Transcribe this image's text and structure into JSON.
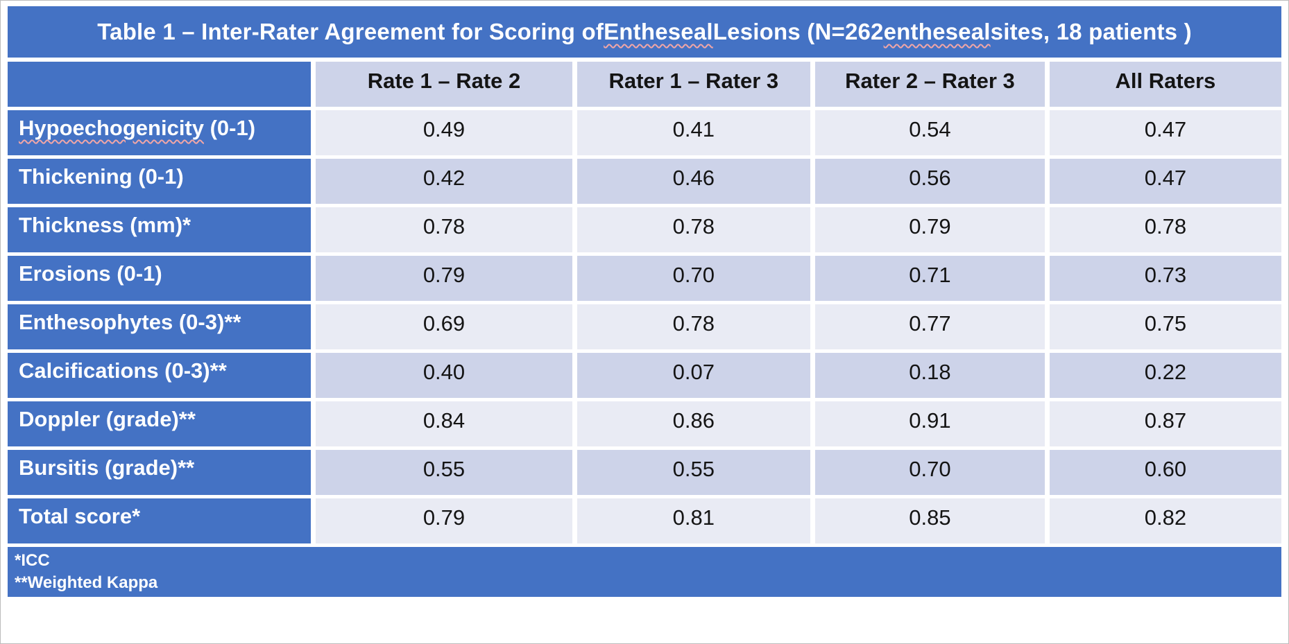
{
  "colors": {
    "accent_blue": "#4472C4",
    "band_light": "#E9EBF4",
    "band_dark": "#CDD3E9",
    "gap_white": "#FFFFFF",
    "value_text": "#141414",
    "spellcheck_squiggle": "#E06666"
  },
  "title": "Table 1 – Inter-Rater Agreement for Scoring of Entheseal Lesions (N=262 entheseal sites, 18 patients )",
  "spellcheck_words": [
    "Entheseal",
    "entheseal",
    "Hypoechogenicity"
  ],
  "table": {
    "columns": [
      "Rate 1 – Rate 2",
      "Rater 1 – Rater 3",
      "Rater 2 – Rater 3",
      "All Raters"
    ],
    "rows": [
      {
        "label": "Hypoechogenicity (0-1)",
        "values": [
          "0.49",
          "0.41",
          "0.54",
          "0.47"
        ]
      },
      {
        "label": "Thickening (0-1)",
        "values": [
          "0.42",
          "0.46",
          "0.56",
          "0.47"
        ]
      },
      {
        "label": "Thickness (mm)*",
        "values": [
          "0.78",
          "0.78",
          "0.79",
          "0.78"
        ]
      },
      {
        "label": "Erosions (0-1)",
        "values": [
          "0.79",
          "0.70",
          "0.71",
          "0.73"
        ]
      },
      {
        "label": "Enthesophytes (0-3)**",
        "values": [
          "0.69",
          "0.78",
          "0.77",
          "0.75"
        ]
      },
      {
        "label": "Calcifications (0-3)**",
        "values": [
          "0.40",
          "0.07",
          "0.18",
          "0.22"
        ]
      },
      {
        "label": "Doppler (grade)**",
        "values": [
          "0.84",
          "0.86",
          "0.91",
          "0.87"
        ]
      },
      {
        "label": "Bursitis (grade)**",
        "values": [
          "0.55",
          "0.55",
          "0.70",
          "0.60"
        ]
      },
      {
        "label": "Total score*",
        "values": [
          "0.79",
          "0.81",
          "0.85",
          "0.82"
        ]
      }
    ]
  },
  "footnotes": [
    "*ICC",
    "**Weighted Kappa"
  ],
  "chart_data": {
    "type": "table",
    "title": "Table 1 – Inter-Rater Agreement for Scoring of Entheseal Lesions (N=262 entheseal sites, 18 patients )",
    "columns": [
      "",
      "Rate 1 – Rate 2",
      "Rater 1 – Rater 3",
      "Rater 2 – Rater 3",
      "All Raters"
    ],
    "rows": [
      [
        "Hypoechogenicity (0-1)",
        0.49,
        0.41,
        0.54,
        0.47
      ],
      [
        "Thickening (0-1)",
        0.42,
        0.46,
        0.56,
        0.47
      ],
      [
        "Thickness (mm)*",
        0.78,
        0.78,
        0.79,
        0.78
      ],
      [
        "Erosions (0-1)",
        0.79,
        0.7,
        0.71,
        0.73
      ],
      [
        "Enthesophytes (0-3)**",
        0.69,
        0.78,
        0.77,
        0.75
      ],
      [
        "Calcifications (0-3)**",
        0.4,
        0.07,
        0.18,
        0.22
      ],
      [
        "Doppler (grade)**",
        0.84,
        0.86,
        0.91,
        0.87
      ],
      [
        "Bursitis (grade)**",
        0.55,
        0.55,
        0.7,
        0.6
      ],
      [
        "Total score*",
        0.79,
        0.81,
        0.85,
        0.82
      ]
    ],
    "notes": [
      "*ICC",
      "**Weighted Kappa"
    ]
  }
}
